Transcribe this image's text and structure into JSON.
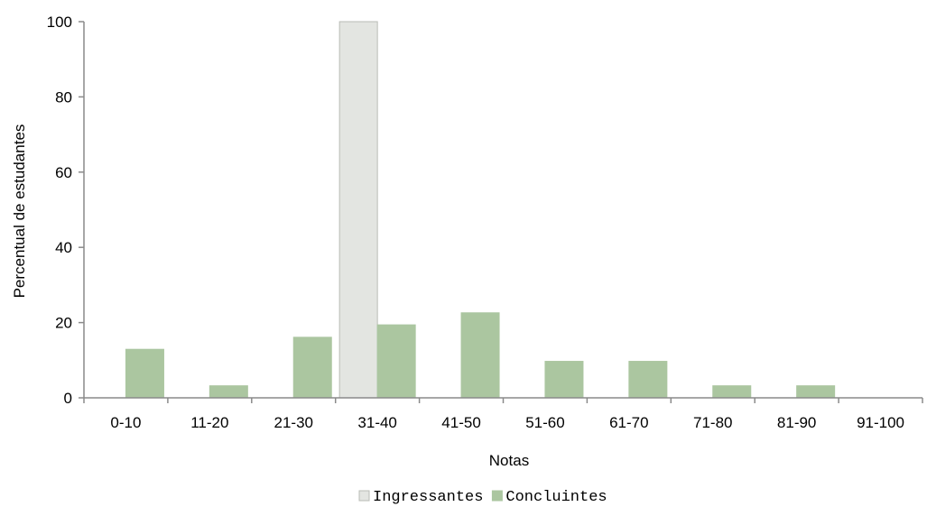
{
  "chart_data": {
    "type": "bar",
    "xlabel": "Notas",
    "ylabel": "Percentual de estudantes",
    "ylim": [
      0,
      100
    ],
    "yticks": [
      0,
      20,
      40,
      60,
      80,
      100
    ],
    "categories": [
      "0-10",
      "11-20",
      "21-30",
      "31-40",
      "41-50",
      "51-60",
      "61-70",
      "71-80",
      "81-90",
      "91-100"
    ],
    "series": [
      {
        "name": "Ingressantes",
        "color": "#e3e5e1",
        "stroke": "#b9bcb6",
        "values": [
          0,
          0,
          0,
          100,
          0,
          0,
          0,
          0,
          0,
          0
        ]
      },
      {
        "name": "Concluintes",
        "color": "#abc6a0",
        "stroke": "#abc6a0",
        "values": [
          12.9,
          3.2,
          16.1,
          19.4,
          22.6,
          9.7,
          9.7,
          3.2,
          3.2,
          0
        ]
      }
    ],
    "grid": false,
    "legend_position": "bottom-center",
    "axis_color": "#8a8a8a"
  }
}
